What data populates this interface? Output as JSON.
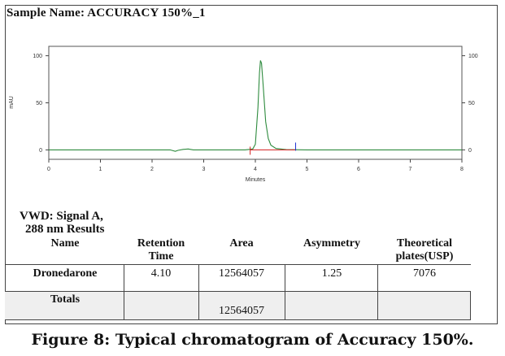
{
  "sample_name": "Sample Name: ACCURACY 150%_1",
  "chart_data": {
    "type": "line",
    "xlabel": "Minutes",
    "ylabel": "mAU",
    "xlim": [
      0,
      8
    ],
    "ylim": [
      -10,
      110
    ],
    "x_ticks": [
      "0",
      "1",
      "2",
      "3",
      "4",
      "5",
      "6",
      "7",
      "8"
    ],
    "y_ticks_left": [
      "100",
      "50",
      "0"
    ],
    "y_ticks_right": [
      "100",
      "50",
      "0"
    ],
    "series": [
      {
        "color": "#2e8b3e",
        "x": [
          0,
          2.35,
          2.45,
          2.5,
          2.6,
          2.7,
          2.8,
          3.8,
          3.95,
          4.0,
          4.05,
          4.08,
          4.1,
          4.12,
          4.15,
          4.2,
          4.25,
          4.3,
          4.4,
          4.6,
          5.0,
          8.0
        ],
        "y": [
          0,
          0,
          -1.5,
          -0.5,
          0.5,
          1,
          0,
          0,
          1,
          6,
          45,
          82,
          95,
          92,
          70,
          30,
          12,
          5,
          1.5,
          0.3,
          0,
          0
        ]
      }
    ],
    "peak_markers": {
      "start": 3.9,
      "end": 4.78,
      "color_start": "#d21e1e",
      "color_end": "#1b2fd1"
    }
  },
  "results": {
    "title_line1": "VWD: Signal A,",
    "title_line2": "288 nm Results",
    "headers": [
      "Name",
      "Retention Time",
      "Area",
      "Asymmetry",
      "Theoretical plates(USP)"
    ],
    "rows": [
      {
        "name": "Dronedarone",
        "retention_time": "4.10",
        "area": "12564057",
        "asymmetry": "1.25",
        "plates": "7076"
      }
    ],
    "totals_label": "Totals",
    "totals_area": "12564057"
  },
  "caption": "Figure 8: Typical chromatogram of Accuracy 150%."
}
